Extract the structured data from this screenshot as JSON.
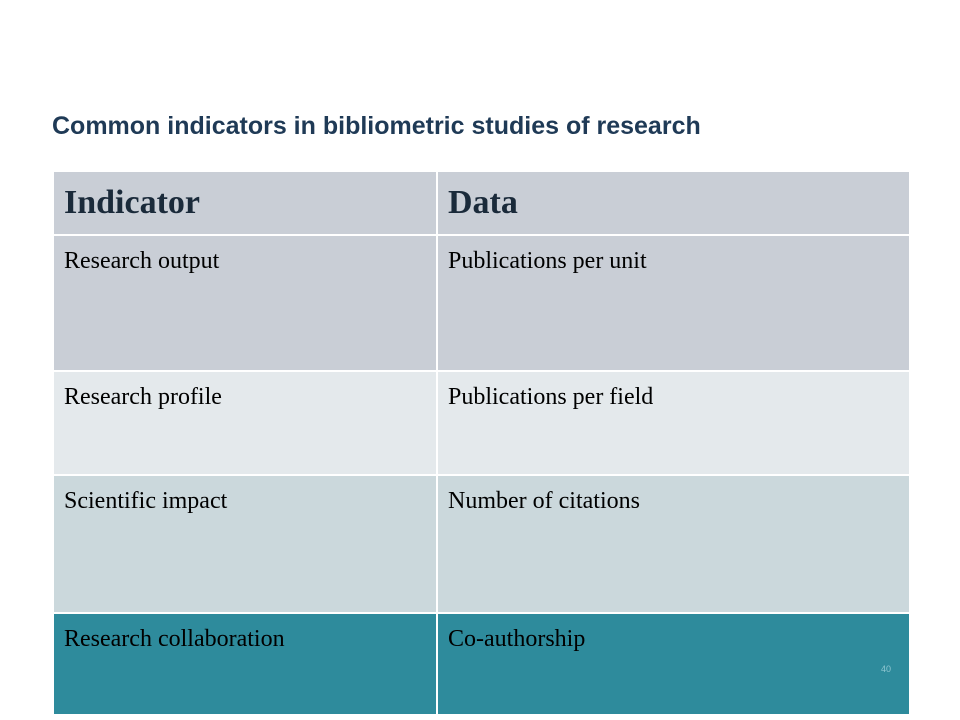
{
  "slide": {
    "title": "Common indicators in bibliometric studies of research",
    "page_number": "40"
  },
  "table": {
    "headers": [
      "Indicator",
      "Data"
    ],
    "rows": [
      [
        "Research output",
        "Publications per unit"
      ],
      [
        "Research profile",
        "Publications per field"
      ],
      [
        "Scientific impact",
        "Number of citations"
      ],
      [
        "Research collaboration",
        "Co-authorship"
      ]
    ]
  },
  "colors": {
    "header_bg": "#c9ced6",
    "row1_bg": "#c9ced6",
    "row2_bg": "#e4e9ec",
    "row3_bg": "#cbd8dc",
    "row4_bg": "#2e8b9c",
    "title_text": "#1f3a56"
  }
}
